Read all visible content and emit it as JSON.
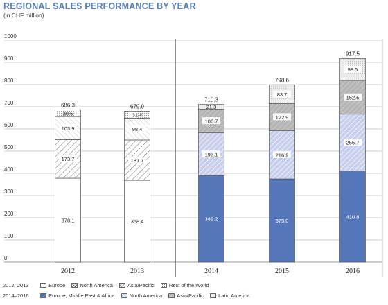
{
  "header": {
    "title": "REGIONAL SALES PERFORMANCE BY YEAR",
    "subtitle": "(in CHF million)"
  },
  "colors": {
    "title": "#5b7fb8",
    "europe_mea": "#5577b9",
    "north_america_new": "#c7cfec",
    "asia_pacific_new": "#b5b5b5",
    "latin_america": "#ececec",
    "grid": "#999999"
  },
  "chart_data": {
    "type": "bar",
    "stacked": true,
    "title": "REGIONAL SALES PERFORMANCE BY YEAR",
    "subtitle": "(in CHF million)",
    "ylim": [
      0,
      1000
    ],
    "yticks": [
      0,
      100,
      200,
      300,
      400,
      500,
      600,
      700,
      800,
      900,
      1000
    ],
    "categories": [
      "2012",
      "2013",
      "2014",
      "2015",
      "2016"
    ],
    "totals": [
      686.3,
      679.9,
      710.3,
      798.6,
      917.5
    ],
    "grid": true,
    "legend_position": "bottom",
    "legend_groups": [
      {
        "period": "2012–2013",
        "items": [
          {
            "label": "Europe",
            "style": "white"
          },
          {
            "label": "North America",
            "style": "white-hatch"
          },
          {
            "label": "Asia/Pacific",
            "style": "white-hatch-light"
          },
          {
            "label": "Rest of the World",
            "style": "white-dotted"
          }
        ]
      },
      {
        "period": "2014–2016",
        "items": [
          {
            "label": "Europe, Middle East & Africa",
            "style": "blue"
          },
          {
            "label": "North America",
            "style": "lightblue-hatch"
          },
          {
            "label": "Asia/Pacific",
            "style": "gray-hatch"
          },
          {
            "label": "Latin America",
            "style": "lightgray"
          }
        ]
      }
    ],
    "series": [
      {
        "name": "Europe",
        "values": [
          378.1,
          368.4,
          null,
          null,
          null
        ]
      },
      {
        "name": "Europe, Middle East & Africa",
        "values": [
          null,
          null,
          389.2,
          375.0,
          410.8
        ]
      },
      {
        "name": "North America",
        "values": [
          173.7,
          181.7,
          193.1,
          216.9,
          255.7
        ]
      },
      {
        "name": "Asia/Pacific",
        "values": [
          103.9,
          98.4,
          106.7,
          122.9,
          152.5
        ]
      },
      {
        "name": "Rest of the World",
        "values": [
          30.5,
          31.4,
          null,
          null,
          null
        ]
      },
      {
        "name": "Latin America",
        "values": [
          null,
          null,
          21.3,
          83.7,
          98.5
        ]
      }
    ],
    "stacks": [
      {
        "year": "2012",
        "total": "686.3",
        "segments": [
          {
            "value": 378.1,
            "label": "378.1",
            "style": "white"
          },
          {
            "value": 173.7,
            "label": "173.7",
            "style": "white-hatch"
          },
          {
            "value": 103.9,
            "label": "103.9",
            "style": "white-hatch-light"
          },
          {
            "value": 30.5,
            "label": "30.5",
            "style": "white-dotted"
          }
        ]
      },
      {
        "year": "2013",
        "total": "679.9",
        "segments": [
          {
            "value": 368.4,
            "label": "368.4",
            "style": "white"
          },
          {
            "value": 181.7,
            "label": "181.7",
            "style": "white-hatch"
          },
          {
            "value": 98.4,
            "label": "98.4",
            "style": "white-hatch-light"
          },
          {
            "value": 31.4,
            "label": "31.4",
            "style": "white-dotted"
          }
        ]
      },
      {
        "year": "2014",
        "total": "710.3",
        "segments": [
          {
            "value": 389.2,
            "label": "389.2",
            "style": "blue"
          },
          {
            "value": 193.1,
            "label": "193.1",
            "style": "lightblue-hatch"
          },
          {
            "value": 106.7,
            "label": "106.7",
            "style": "gray-hatch"
          },
          {
            "value": 21.3,
            "label": "21.3",
            "style": "lightgray"
          }
        ]
      },
      {
        "year": "2015",
        "total": "798.6",
        "segments": [
          {
            "value": 375.0,
            "label": "375.0",
            "style": "blue"
          },
          {
            "value": 216.9,
            "label": "216.9",
            "style": "lightblue-hatch"
          },
          {
            "value": 122.9,
            "label": "122.9",
            "style": "gray-hatch"
          },
          {
            "value": 83.7,
            "label": "83.7",
            "style": "lightgray"
          }
        ]
      },
      {
        "year": "2016",
        "total": "917.5",
        "segments": [
          {
            "value": 410.8,
            "label": "410.8",
            "style": "blue"
          },
          {
            "value": 255.7,
            "label": "255.7",
            "style": "lightblue-hatch"
          },
          {
            "value": 152.5,
            "label": "152.5",
            "style": "gray-hatch"
          },
          {
            "value": 98.5,
            "label": "98.5",
            "style": "lightgray"
          }
        ]
      }
    ]
  }
}
